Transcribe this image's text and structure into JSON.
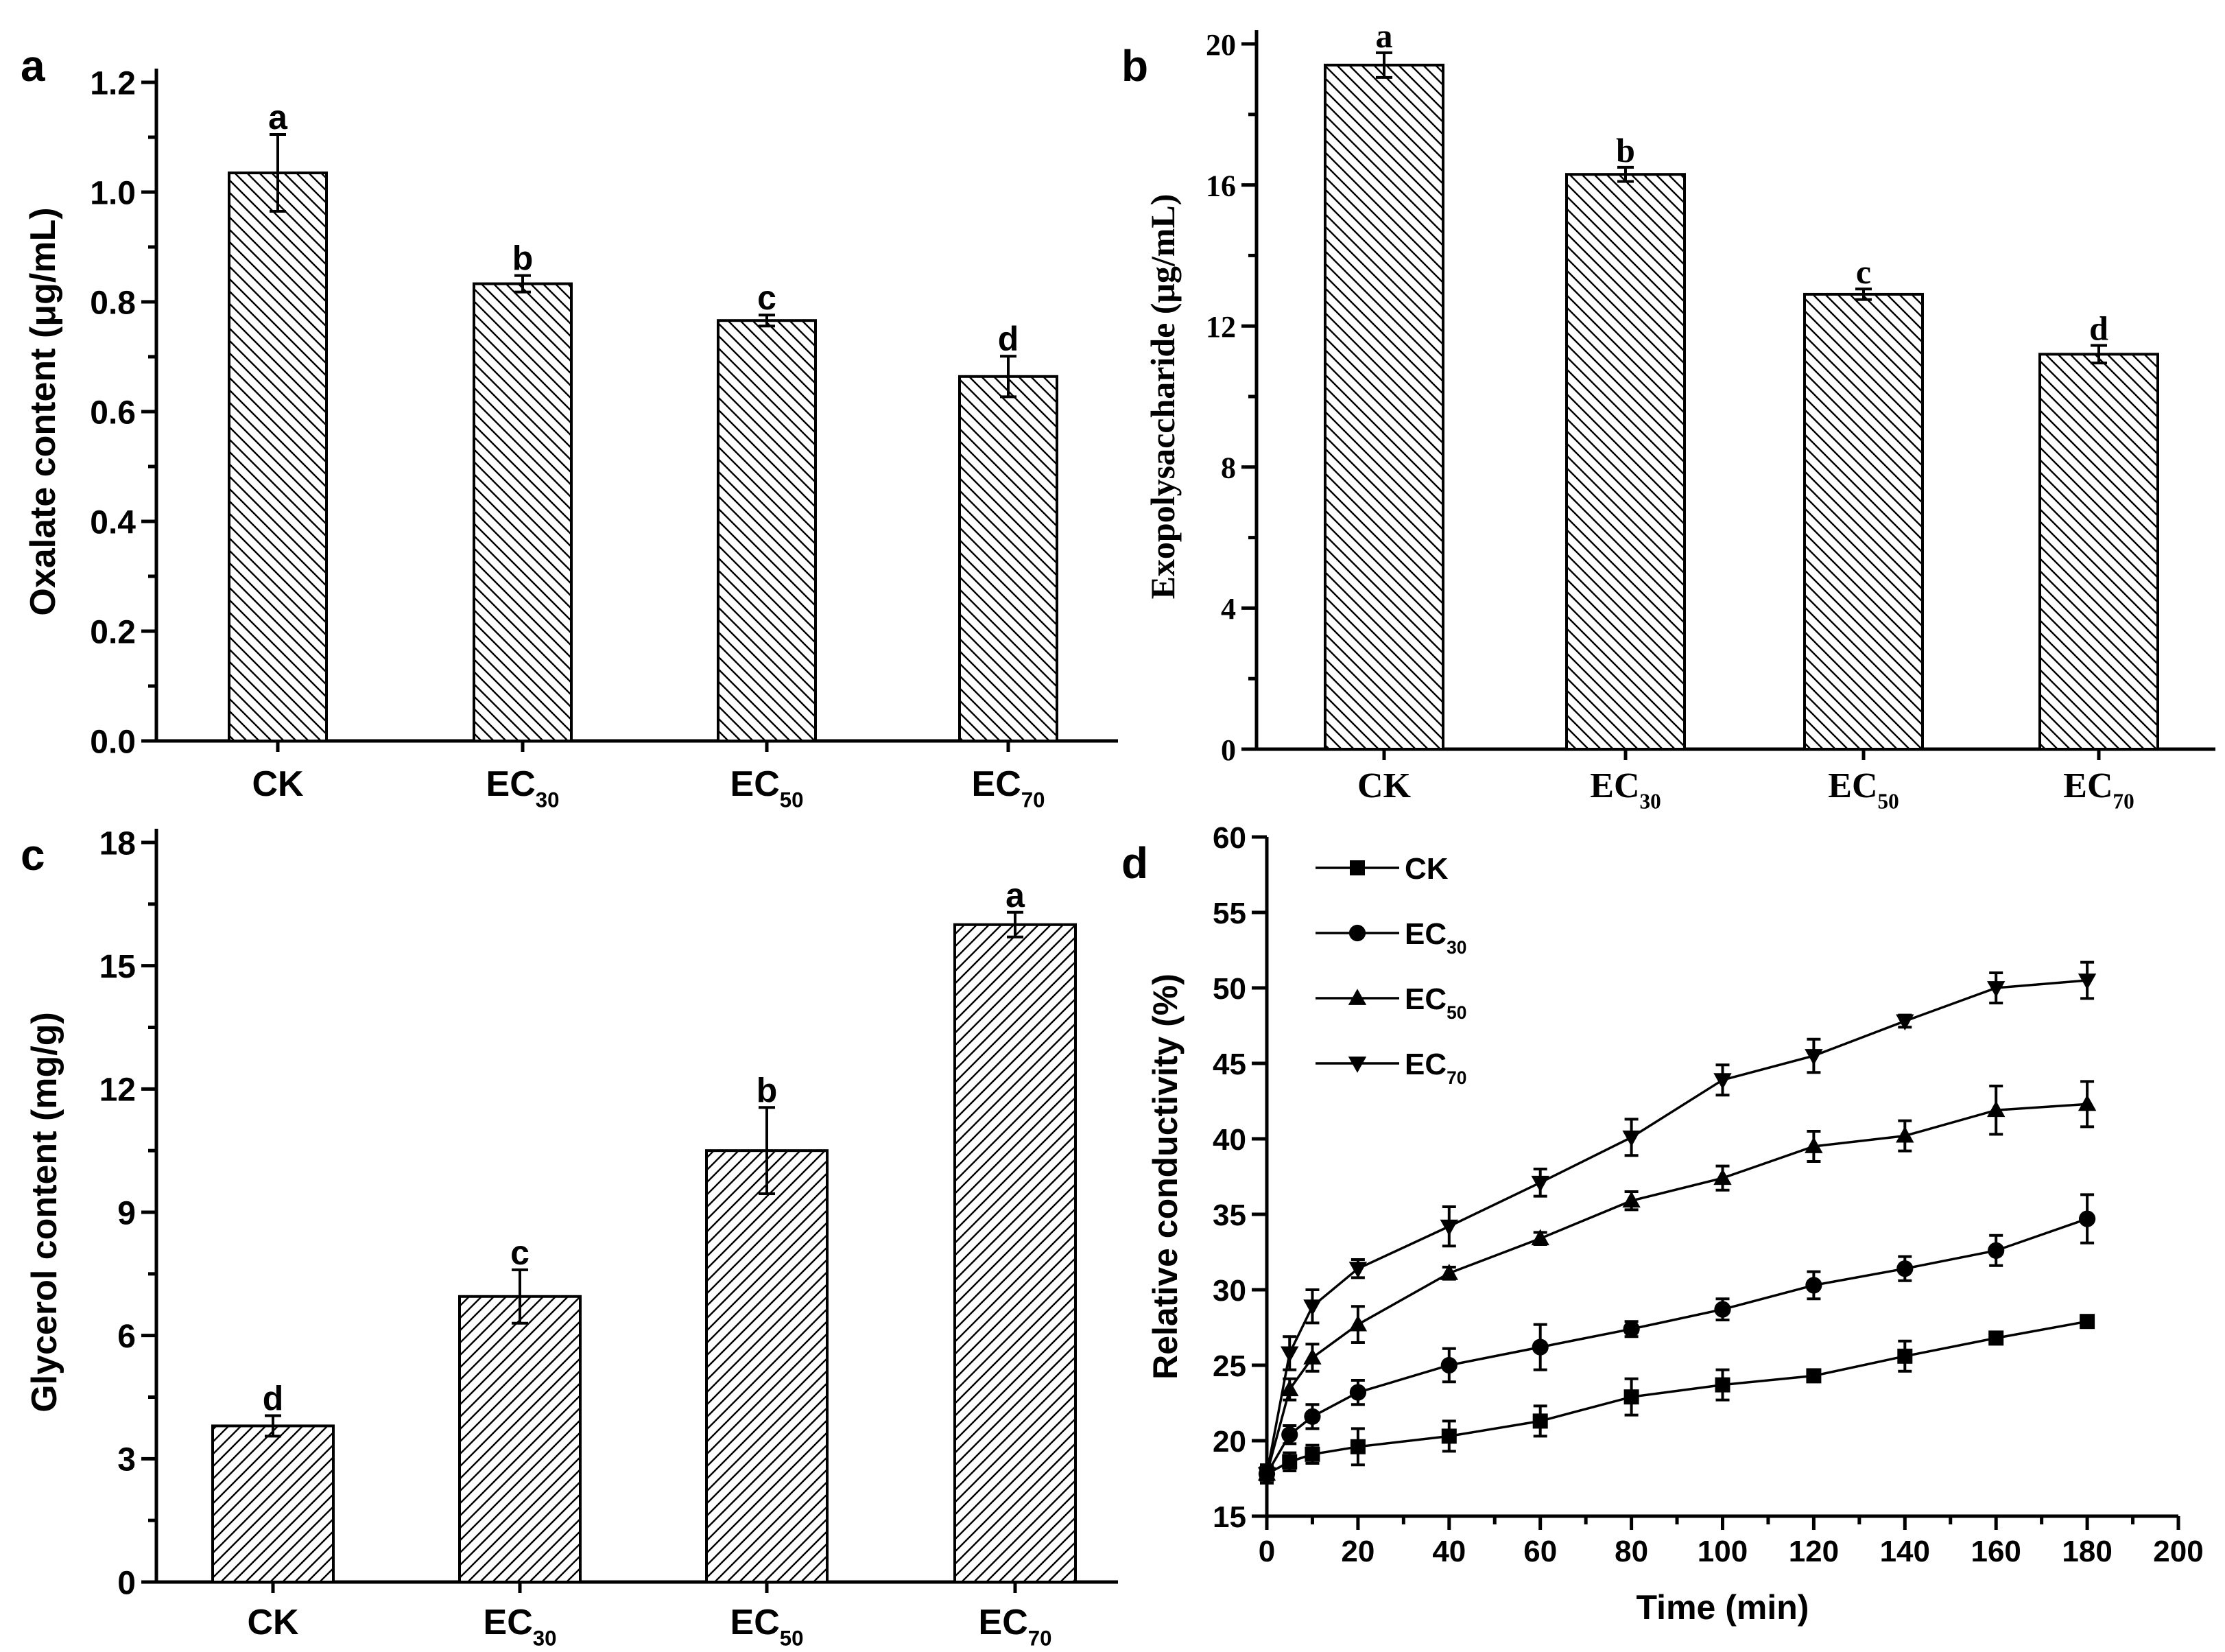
{
  "chart_data": [
    {
      "panel": "a",
      "type": "bar",
      "ylabel": "Oxalate content (μg/mL)",
      "ylim": [
        0,
        1.2
      ],
      "yticks": [
        "0.0",
        "0.2",
        "0.4",
        "0.6",
        "0.8",
        "1.0",
        "1.2"
      ],
      "categories": [
        {
          "base": "CK",
          "sub": ""
        },
        {
          "base": "EC",
          "sub": "30"
        },
        {
          "base": "EC",
          "sub": "50"
        },
        {
          "base": "EC",
          "sub": "70"
        }
      ],
      "values": [
        1.035,
        0.833,
        0.766,
        0.664
      ],
      "errors": [
        0.07,
        0.015,
        0.01,
        0.037
      ],
      "letters": [
        "a",
        "b",
        "c",
        "d"
      ]
    },
    {
      "panel": "b",
      "type": "bar",
      "ylabel": "Exopolysaccharide (μg/mL)",
      "ylim": [
        0,
        20
      ],
      "yticks": [
        "0",
        "4",
        "8",
        "12",
        "16",
        "20"
      ],
      "categories": [
        {
          "base": "CK",
          "sub": ""
        },
        {
          "base": "EC",
          "sub": "30"
        },
        {
          "base": "EC",
          "sub": "50"
        },
        {
          "base": "EC",
          "sub": "70"
        }
      ],
      "values": [
        19.4,
        16.3,
        12.9,
        11.2
      ],
      "errors": [
        0.35,
        0.2,
        0.15,
        0.25
      ],
      "letters": [
        "a",
        "b",
        "c",
        "d"
      ]
    },
    {
      "panel": "c",
      "type": "bar",
      "ylabel": "Glycerol content (mg/g)",
      "ylim": [
        0,
        18
      ],
      "yticks": [
        "0",
        "3",
        "6",
        "9",
        "12",
        "15",
        "18"
      ],
      "categories": [
        {
          "base": "CK",
          "sub": ""
        },
        {
          "base": "EC",
          "sub": "30"
        },
        {
          "base": "EC",
          "sub": "50"
        },
        {
          "base": "EC",
          "sub": "70"
        }
      ],
      "values": [
        3.8,
        6.95,
        10.5,
        16.0
      ],
      "errors": [
        0.25,
        0.65,
        1.05,
        0.3
      ],
      "letters": [
        "d",
        "c",
        "b",
        "a"
      ]
    },
    {
      "panel": "d",
      "type": "line",
      "xlabel": "Time (min)",
      "ylabel": "Relative conductivity (%)",
      "xlim": [
        0,
        200
      ],
      "ylim": [
        15,
        60
      ],
      "xticks": [
        "0",
        "20",
        "40",
        "60",
        "80",
        "100",
        "120",
        "140",
        "160",
        "180",
        "200"
      ],
      "yticks": [
        "15",
        "20",
        "25",
        "30",
        "35",
        "40",
        "45",
        "50",
        "55",
        "60"
      ],
      "x": [
        0,
        5,
        10,
        20,
        40,
        60,
        80,
        100,
        120,
        140,
        160,
        180
      ],
      "series": [
        {
          "name": {
            "base": "CK",
            "sub": ""
          },
          "marker": "square",
          "values": [
            17.8,
            18.6,
            19.1,
            19.6,
            20.3,
            21.3,
            22.9,
            23.7,
            24.3,
            25.6,
            26.8,
            27.9
          ],
          "errors": [
            0.6,
            0.6,
            0.6,
            1.2,
            1.0,
            1.0,
            1.2,
            1.0,
            0.3,
            1.0,
            0.3,
            0.3
          ]
        },
        {
          "name": {
            "base": "EC",
            "sub": "30"
          },
          "marker": "circle",
          "values": [
            17.8,
            20.4,
            21.6,
            23.2,
            25.0,
            26.2,
            27.4,
            28.7,
            30.3,
            31.4,
            32.6,
            34.7
          ],
          "errors": [
            0.6,
            0.6,
            0.8,
            0.8,
            1.1,
            1.5,
            0.5,
            0.7,
            0.9,
            0.8,
            1.0,
            1.6
          ]
        },
        {
          "name": {
            "base": "EC",
            "sub": "50"
          },
          "marker": "triangle-up",
          "values": [
            17.8,
            23.4,
            25.5,
            27.7,
            31.1,
            33.4,
            35.9,
            37.4,
            39.5,
            40.2,
            41.9,
            42.3
          ],
          "errors": [
            0.6,
            0.7,
            0.9,
            1.2,
            0.4,
            0.4,
            0.6,
            0.8,
            1.0,
            1.0,
            1.6,
            1.5
          ]
        },
        {
          "name": {
            "base": "EC",
            "sub": "70"
          },
          "marker": "triangle-down",
          "values": [
            17.8,
            25.8,
            28.9,
            31.4,
            34.2,
            37.1,
            40.1,
            43.9,
            45.5,
            47.8,
            50.0,
            50.5
          ],
          "errors": [
            0.6,
            1.1,
            1.1,
            0.6,
            1.3,
            0.9,
            1.2,
            1.0,
            1.1,
            0.4,
            1.0,
            1.2
          ]
        }
      ]
    }
  ]
}
